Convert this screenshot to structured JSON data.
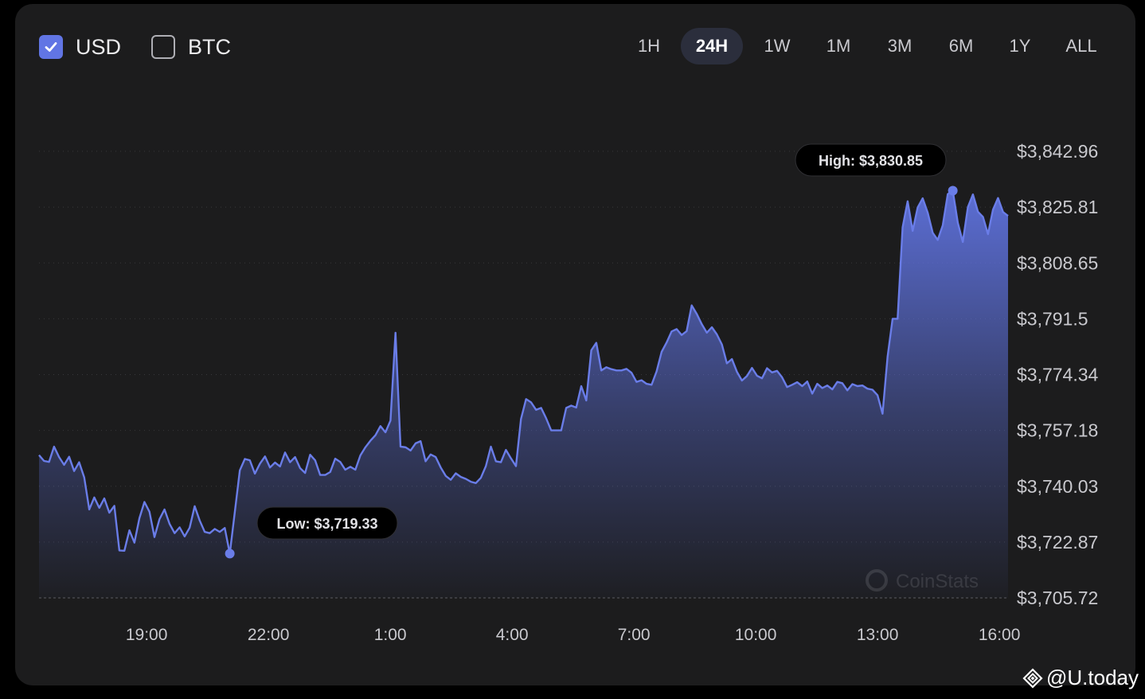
{
  "currency_toggle": {
    "usd": {
      "label": "USD",
      "checked": true
    },
    "btc": {
      "label": "BTC",
      "checked": false
    }
  },
  "time_tabs": [
    {
      "label": "1H",
      "active": false
    },
    {
      "label": "24H",
      "active": true
    },
    {
      "label": "1W",
      "active": false
    },
    {
      "label": "1M",
      "active": false
    },
    {
      "label": "3M",
      "active": false
    },
    {
      "label": "6M",
      "active": false
    },
    {
      "label": "1Y",
      "active": false
    },
    {
      "label": "ALL",
      "active": false
    }
  ],
  "colors": {
    "accent": "#6175e4",
    "line": "#6a7de8",
    "card_background": "#1c1c1d",
    "text": "#ececee",
    "axis_text": "#c9c9ce"
  },
  "chart_data": {
    "type": "area",
    "title": "",
    "xlabel": "",
    "ylabel": "",
    "x_tick_labels": [
      "19:00",
      "22:00",
      "1:00",
      "4:00",
      "7:00",
      "10:00",
      "13:00",
      "16:00"
    ],
    "x_range_hours": [
      16.33,
      16.1
    ],
    "y_tick_labels": [
      "$3,842.96",
      "$3,825.81",
      "$3,808.65",
      "$3,791.5",
      "$3,774.34",
      "$3,757.18",
      "$3,740.03",
      "$3,722.87",
      "$3,705.72"
    ],
    "ylim": [
      3705.72,
      3842.96
    ],
    "y_axis_side": "right",
    "grid": "dotted horizontal",
    "fill": "gradient under line",
    "annotations": {
      "high": {
        "label": "High: $3,830.85",
        "value": 3830.85,
        "hours_after_start": 22.7
      },
      "low": {
        "label": "Low: $3,719.33",
        "value": 3719.33,
        "hours_after_start": 4.95
      }
    },
    "series": [
      {
        "values": [
          3749.6,
          3747.8,
          3747.5,
          3752.2,
          3749.0,
          3746.6,
          3749.1,
          3744.7,
          3747.4,
          3742.7,
          3732.9,
          3736.6,
          3733.4,
          3736.3,
          3731.9,
          3734.0,
          3720.3,
          3720.2,
          3726.5,
          3722.7,
          3730.2,
          3735.2,
          3732.2,
          3724.4,
          3729.9,
          3732.9,
          3728.5,
          3725.6,
          3727.4,
          3724.6,
          3727.3,
          3733.9,
          3729.5,
          3726.0,
          3725.6,
          3726.9,
          3726.0,
          3727.2,
          3719.3,
          3732.1,
          3744.9,
          3748.4,
          3748.0,
          3743.9,
          3747.0,
          3749.2,
          3745.8,
          3747.3,
          3746.1,
          3750.4,
          3747.4,
          3749.0,
          3745.6,
          3744.1,
          3749.7,
          3748.0,
          3743.5,
          3743.5,
          3744.4,
          3748.5,
          3747.5,
          3745.1,
          3746.0,
          3745.1,
          3749.5,
          3752.0,
          3754.0,
          3755.7,
          3758.5,
          3756.6,
          3760.2,
          3787.2,
          3752.2,
          3752.0,
          3751.0,
          3753.2,
          3753.9,
          3747.7,
          3749.8,
          3749.0,
          3745.8,
          3743.2,
          3742.0,
          3744.0,
          3742.9,
          3742.3,
          3741.4,
          3741.0,
          3742.6,
          3746.2,
          3752.2,
          3747.7,
          3747.4,
          3751.2,
          3748.6,
          3746.2,
          3760.7,
          3766.8,
          3765.8,
          3763.5,
          3764.1,
          3760.9,
          3757.2,
          3757.2,
          3757.2,
          3764.1,
          3764.8,
          3764.2,
          3770.8,
          3766.4,
          3781.8,
          3784.1,
          3775.6,
          3776.6,
          3776.0,
          3775.6,
          3775.6,
          3776.1,
          3774.9,
          3772.1,
          3772.6,
          3771.5,
          3771.2,
          3775.3,
          3781.3,
          3784.2,
          3787.6,
          3788.3,
          3786.5,
          3787.7,
          3795.6,
          3793.0,
          3789.8,
          3787.2,
          3788.9,
          3786.7,
          3783.6,
          3777.8,
          3779.1,
          3775.2,
          3772.5,
          3773.9,
          3776.4,
          3774.0,
          3773.2,
          3776.3,
          3775.0,
          3775.5,
          3773.5,
          3770.5,
          3771.2,
          3772.0,
          3770.8,
          3772.2,
          3768.5,
          3771.5,
          3770.2,
          3771.0,
          3769.8,
          3772.1,
          3771.7,
          3769.5,
          3771.4,
          3770.8,
          3771.0,
          3770.0,
          3769.7,
          3768.0,
          3762.3,
          3779.8,
          3791.5,
          3791.5,
          3819.6,
          3827.6,
          3818.5,
          3825.7,
          3828.5,
          3824.1,
          3817.9,
          3815.7,
          3820.2,
          3829.8,
          3830.8,
          3821.0,
          3815.1,
          3825.8,
          3829.7,
          3824.4,
          3822.8,
          3817.5,
          3825.0,
          3828.6,
          3824.3,
          3823.1
        ]
      }
    ]
  },
  "watermark": {
    "text": "@U.today",
    "brand_watermark": "CoinStats"
  }
}
